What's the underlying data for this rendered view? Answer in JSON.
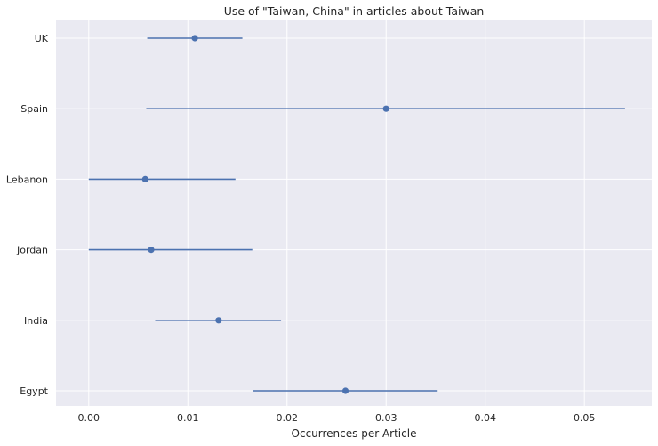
{
  "chart_data": {
    "type": "scatter",
    "title": "Use of \"Taiwan, China\" in articles about Taiwan",
    "xlabel": "Occurrences per Article",
    "ylabel": "",
    "xlim": [
      -0.0033,
      0.0568
    ],
    "x_ticks": [
      "0.00",
      "0.01",
      "0.02",
      "0.03",
      "0.04",
      "0.05"
    ],
    "x_tick_values": [
      0.0,
      0.01,
      0.02,
      0.03,
      0.04,
      0.05
    ],
    "categories": [
      "UK",
      "Spain",
      "Lebanon",
      "Jordan",
      "India",
      "Egypt"
    ],
    "series": [
      {
        "values": [
          0.0107,
          0.03,
          0.0057,
          0.0063,
          0.0131,
          0.0259
        ],
        "error_low": [
          0.0059,
          0.0058,
          0.0,
          0.0,
          0.0067,
          0.0166
        ],
        "error_high": [
          0.0155,
          0.0541,
          0.0148,
          0.0165,
          0.0194,
          0.0352
        ]
      }
    ],
    "grid": true,
    "colors": {
      "background": "#eaeaf2",
      "grid": "#ffffff",
      "marker": "#4c72b0"
    }
  }
}
